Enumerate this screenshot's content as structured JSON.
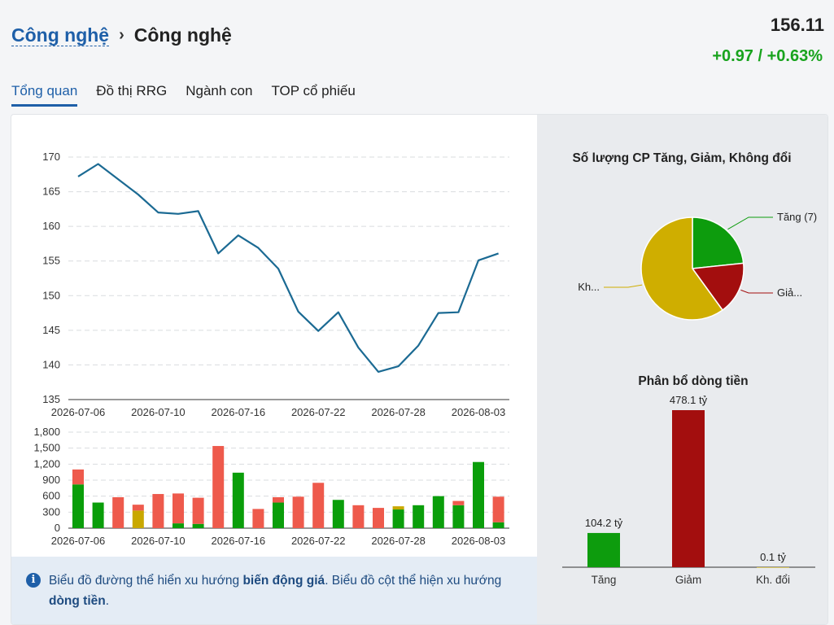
{
  "breadcrumb": {
    "parent": "Công nghệ",
    "separator": "›",
    "current": "Công nghệ"
  },
  "price": {
    "value": "156.11",
    "change": "+0.97 / +0.63%"
  },
  "tabs": [
    {
      "label": "Tổng quan",
      "active": true
    },
    {
      "label": "Đồ thị RRG",
      "active": false
    },
    {
      "label": "Ngành con",
      "active": false
    },
    {
      "label": "TOP cổ phiếu",
      "active": false
    }
  ],
  "info": {
    "icon": "info-icon",
    "part1": "Biểu đồ đường thể hiển xu hướng ",
    "bold1": "biến động giá",
    "part2": ". Biểu đồ cột thể hiện xu hướng ",
    "bold2": "dòng tiền",
    "part3": "."
  },
  "colors": {
    "up": "#0a9e0a",
    "down": "#ee5a4c",
    "flat": "#c9a800",
    "line": "#1b6a93",
    "pie_up": "#0d9c0d",
    "pie_down": "#a30e0e",
    "pie_flat": "#cfae00",
    "brand": "#1e5fa8"
  },
  "chart_data": [
    {
      "type": "line",
      "x": [
        "2026-07-06",
        "2026-07-07",
        "2026-07-08",
        "2026-07-09",
        "2026-07-10",
        "2026-07-13",
        "2026-07-14",
        "2026-07-15",
        "2026-07-16",
        "2026-07-17",
        "2026-07-20",
        "2026-07-21",
        "2026-07-22",
        "2026-07-23",
        "2026-07-24",
        "2026-07-27",
        "2026-07-28",
        "2026-07-29",
        "2026-07-30",
        "2026-07-31",
        "2026-08-03",
        "2026-08-04"
      ],
      "y": [
        167.2,
        169.0,
        166.8,
        164.6,
        162.0,
        161.8,
        162.2,
        156.1,
        158.7,
        156.9,
        153.9,
        147.7,
        144.9,
        147.6,
        142.5,
        139.0,
        139.8,
        142.8,
        147.5,
        147.6,
        155.1,
        156.1
      ],
      "x_ticks": [
        "2026-07-06",
        "2026-07-10",
        "2026-07-16",
        "2026-07-22",
        "2026-07-28",
        "2026-08-03"
      ],
      "y_ticks": [
        "135",
        "140",
        "145",
        "150",
        "155",
        "160",
        "165",
        "170"
      ],
      "ylim": [
        135,
        172
      ]
    },
    {
      "type": "bar",
      "stacked": true,
      "categories": [
        "2026-07-06",
        "2026-07-07",
        "2026-07-08",
        "2026-07-09",
        "2026-07-10",
        "2026-07-13",
        "2026-07-14",
        "2026-07-15",
        "2026-07-16",
        "2026-07-17",
        "2026-07-20",
        "2026-07-21",
        "2026-07-22",
        "2026-07-23",
        "2026-07-24",
        "2026-07-27",
        "2026-07-28",
        "2026-07-29",
        "2026-07-30",
        "2026-07-31",
        "2026-08-03",
        "2026-08-04"
      ],
      "series": [
        {
          "key": "up",
          "values": [
            820,
            480,
            0,
            0,
            0,
            90,
            80,
            0,
            1040,
            0,
            480,
            0,
            0,
            530,
            0,
            0,
            350,
            430,
            600,
            430,
            1240,
            110
          ]
        },
        {
          "key": "flat",
          "values": [
            0,
            0,
            0,
            330,
            0,
            0,
            0,
            0,
            0,
            0,
            0,
            0,
            0,
            0,
            0,
            0,
            60,
            0,
            0,
            0,
            0,
            0
          ]
        },
        {
          "key": "down",
          "values": [
            280,
            0,
            580,
            110,
            640,
            560,
            490,
            1540,
            0,
            360,
            100,
            590,
            850,
            0,
            430,
            380,
            0,
            0,
            0,
            80,
            0,
            480
          ]
        }
      ],
      "x_ticks": [
        "2026-07-06",
        "2026-07-10",
        "2026-07-16",
        "2026-07-22",
        "2026-07-28",
        "2026-08-03"
      ],
      "y_ticks": [
        "0",
        "300",
        "600",
        "900",
        "1,200",
        "1,500",
        "1,800"
      ],
      "ylim": [
        0,
        1800
      ]
    },
    {
      "type": "pie",
      "title": "Số lượng CP Tăng, Giảm, Không đổi",
      "slices": [
        {
          "label": "Tăng (7)",
          "value": 7,
          "key": "pie_up"
        },
        {
          "label": "Giả...",
          "value": 5,
          "key": "pie_down"
        },
        {
          "label": "Kh...",
          "value": 18,
          "key": "pie_flat"
        }
      ]
    },
    {
      "type": "bar",
      "title": "Phân bổ dòng tiền",
      "categories": [
        "Tăng",
        "Giảm",
        "Kh. đổi"
      ],
      "values": [
        104.2,
        478.1,
        0.1
      ],
      "labels": [
        "104.2 tỷ",
        "478.1 tỷ",
        "0.1 tỷ"
      ],
      "keys": [
        "pie_up",
        "pie_down",
        "pie_flat"
      ]
    }
  ]
}
